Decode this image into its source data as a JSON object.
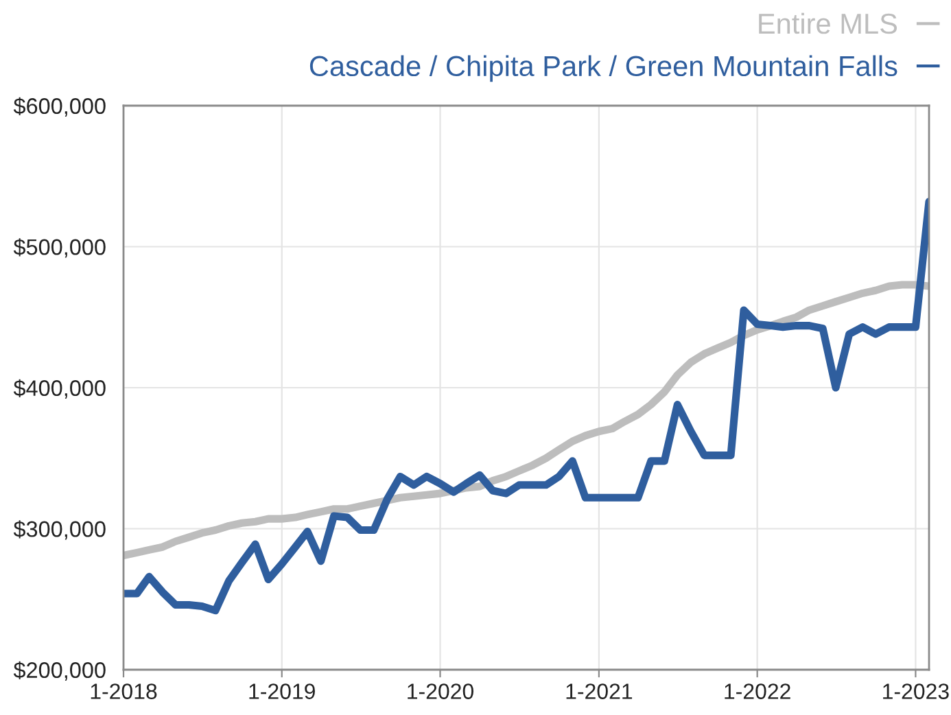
{
  "chart_data": {
    "type": "line",
    "x": [
      "2018-01",
      "2018-02",
      "2018-03",
      "2018-04",
      "2018-05",
      "2018-06",
      "2018-07",
      "2018-08",
      "2018-09",
      "2018-10",
      "2018-11",
      "2018-12",
      "2019-01",
      "2019-02",
      "2019-03",
      "2019-04",
      "2019-05",
      "2019-06",
      "2019-07",
      "2019-08",
      "2019-09",
      "2019-10",
      "2019-11",
      "2019-12",
      "2020-01",
      "2020-02",
      "2020-03",
      "2020-04",
      "2020-05",
      "2020-06",
      "2020-07",
      "2020-08",
      "2020-09",
      "2020-10",
      "2020-11",
      "2020-12",
      "2021-01",
      "2021-02",
      "2021-03",
      "2021-04",
      "2021-05",
      "2021-06",
      "2021-07",
      "2021-08",
      "2021-09",
      "2021-10",
      "2021-11",
      "2021-12",
      "2022-01",
      "2022-02",
      "2022-03",
      "2022-04",
      "2022-05",
      "2022-06",
      "2022-07",
      "2022-08",
      "2022-09",
      "2022-10",
      "2022-11",
      "2022-12",
      "2023-01",
      "2023-02"
    ],
    "series": [
      {
        "name": "Entire MLS",
        "color": "#bdbdbd",
        "values": [
          281000,
          283000,
          285000,
          287000,
          291000,
          294000,
          297000,
          299000,
          302000,
          304000,
          305000,
          307000,
          307000,
          308000,
          310000,
          312000,
          314000,
          314000,
          316000,
          318000,
          320000,
          322000,
          323000,
          324000,
          325000,
          327000,
          329000,
          330000,
          334000,
          337000,
          341000,
          345000,
          350000,
          356000,
          362000,
          366000,
          369000,
          371000,
          376000,
          381000,
          388000,
          397000,
          409000,
          418000,
          424000,
          428000,
          432000,
          437000,
          441000,
          444000,
          447000,
          450000,
          455000,
          458000,
          461000,
          464000,
          467000,
          469000,
          472000,
          473000,
          473000,
          472000
        ]
      },
      {
        "name": "Cascade / Chipita Park / Green Mountain Falls",
        "color": "#2f5e9e",
        "values": [
          254000,
          254000,
          266000,
          255000,
          246000,
          246000,
          245000,
          242000,
          263000,
          276000,
          289000,
          264000,
          275000,
          287000,
          298000,
          277000,
          309000,
          308000,
          299000,
          299000,
          321000,
          337000,
          331000,
          337000,
          332000,
          326000,
          332000,
          338000,
          327000,
          325000,
          331000,
          331000,
          331000,
          337000,
          348000,
          322000,
          322000,
          322000,
          322000,
          322000,
          348000,
          348000,
          388000,
          369000,
          352000,
          352000,
          352000,
          455000,
          445000,
          444000,
          443000,
          444000,
          444000,
          442000,
          400000,
          438000,
          443000,
          438000,
          443000,
          443000,
          443000,
          532000
        ]
      }
    ],
    "xlim": [
      "2018-01",
      "2023-02"
    ],
    "xticks": [
      {
        "value": "2018-01",
        "label": "1-2018"
      },
      {
        "value": "2019-01",
        "label": "1-2019"
      },
      {
        "value": "2020-01",
        "label": "1-2020"
      },
      {
        "value": "2021-01",
        "label": "1-2021"
      },
      {
        "value": "2022-01",
        "label": "1-2022"
      },
      {
        "value": "2023-01",
        "label": "1-2023"
      }
    ],
    "ylim": [
      200000,
      600000
    ],
    "yticks": [
      {
        "value": 200000,
        "label": "$200,000"
      },
      {
        "value": 300000,
        "label": "$300,000"
      },
      {
        "value": 400000,
        "label": "$400,000"
      },
      {
        "value": 500000,
        "label": "$500,000"
      },
      {
        "value": 600000,
        "label": "$600,000"
      }
    ],
    "grid": true,
    "legend": "top right",
    "marker": "none",
    "line_style": "solid"
  }
}
